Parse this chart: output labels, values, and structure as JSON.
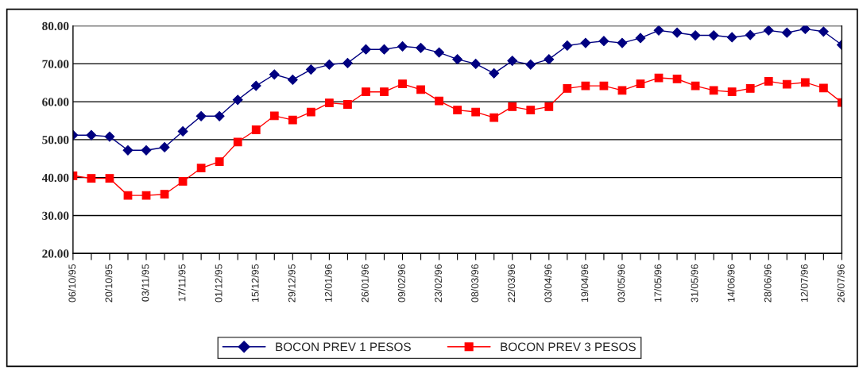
{
  "chart_data": {
    "type": "line",
    "categories": [
      "06/10/95",
      null,
      "20/10/95",
      null,
      "03/11/95",
      null,
      "17/11/95",
      null,
      "01/12/95",
      null,
      "15/12/95",
      null,
      "29/12/95",
      null,
      "12/01/96",
      null,
      "26/01/96",
      null,
      "09/02/96",
      null,
      "23/02/96",
      null,
      "08/03/96",
      null,
      "22/03/96",
      null,
      "03/04/96",
      null,
      "19/04/96",
      null,
      "03/05/96",
      null,
      "17/05/96",
      null,
      "31/05/96",
      null,
      "14/06/96",
      null,
      "28/06/96",
      null,
      "12/07/96",
      null,
      "26/07/96"
    ],
    "series": [
      {
        "name": "BOCON PREV 1 PESOS",
        "color": "#000080",
        "marker": "diamond",
        "values": [
          51.2,
          51.2,
          50.8,
          47.2,
          47.2,
          48,
          52.2,
          56.2,
          56.2,
          60.5,
          64.2,
          67.2,
          65.8,
          68.5,
          69.8,
          70.2,
          73.8,
          73.8,
          74.6,
          74.2,
          73,
          71.2,
          70,
          67.5,
          70.8,
          69.8,
          71.2,
          74.8,
          75.5,
          76,
          75.5,
          76.8,
          78.8,
          78.2,
          77.5,
          77.5,
          77,
          77.6,
          78.8,
          78.2,
          79.2,
          78.5,
          75
        ]
      },
      {
        "name": "BOCON PREV 3 PESOS",
        "color": "#ff0000",
        "marker": "square",
        "values": [
          40.5,
          39.8,
          39.8,
          35.3,
          35.3,
          35.6,
          39,
          42.5,
          44.2,
          49.4,
          52.6,
          56.3,
          55.2,
          57.3,
          59.7,
          59.3,
          62.6,
          62.6,
          64.7,
          63.2,
          60.2,
          57.8,
          57.3,
          55.8,
          58.7,
          57.8,
          58.7,
          63.5,
          64.2,
          64.2,
          63,
          64.7,
          66.3,
          66,
          64.2,
          63,
          62.6,
          63.5,
          65.4,
          64.6,
          65.1,
          63.6,
          59.8
        ]
      }
    ],
    "ylim": [
      20,
      80
    ],
    "yticks": [
      {
        "value": 20,
        "label": "20.00"
      },
      {
        "value": 30,
        "label": "30.00"
      },
      {
        "value": 40,
        "label": "40.00"
      },
      {
        "value": 50,
        "label": "50.00"
      },
      {
        "value": 60,
        "label": "60.00"
      },
      {
        "value": 70,
        "label": "70.00"
      },
      {
        "value": 80,
        "label": "80.00"
      }
    ],
    "grid": "y",
    "legend": "bottom",
    "line_style": "solid"
  }
}
